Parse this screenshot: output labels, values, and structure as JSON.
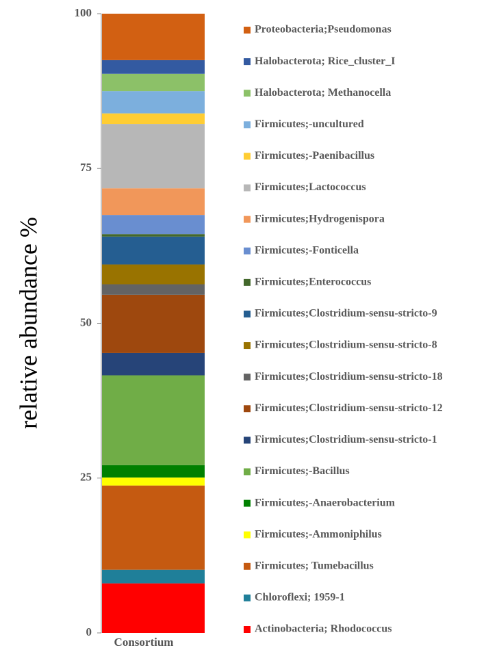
{
  "chart_data": {
    "type": "stacked_bar",
    "y_label": "relative abundance %",
    "categories": [
      "Consortium"
    ],
    "ylim": [
      0,
      100
    ],
    "yticks": [
      0,
      25,
      50,
      75,
      100
    ],
    "series": [
      {
        "name": "Actinobacteria; Rhodococcus",
        "color": "#ff0000",
        "values": [
          8.0
        ]
      },
      {
        "name": "Chloroflexi; 1959-1",
        "color": "#1f7f99",
        "values": [
          2.2
        ]
      },
      {
        "name": "Firmicutes; Tumebacillus",
        "color": "#c55a11",
        "values": [
          13.6
        ]
      },
      {
        "name": "Firmicutes;-Ammoniphilus",
        "color": "#ffff00",
        "values": [
          1.3
        ]
      },
      {
        "name": "Firmicutes;-Anaerobacterium",
        "color": "#008000",
        "values": [
          2.0
        ]
      },
      {
        "name": "Firmicutes;-Bacillus",
        "color": "#70ad47",
        "values": [
          14.5
        ]
      },
      {
        "name": "Firmicutes;Clostridium-sensu-stricto-1",
        "color": "#264478",
        "values": [
          3.6
        ]
      },
      {
        "name": "Firmicutes;Clostridium-sensu-stricto-12",
        "color": "#9e480e",
        "values": [
          9.4
        ]
      },
      {
        "name": "Firmicutes;Clostridium-sensu-stricto-18",
        "color": "#636363",
        "values": [
          1.7
        ]
      },
      {
        "name": "Firmicutes;Clostridium-sensu-stricto-8",
        "color": "#997300",
        "values": [
          3.2
        ]
      },
      {
        "name": "Firmicutes;Clostridium-sensu-stricto-9",
        "color": "#255e91",
        "values": [
          4.5
        ]
      },
      {
        "name": "Firmicutes;Enterococcus",
        "color": "#43682b",
        "values": [
          0.4
        ]
      },
      {
        "name": "Firmicutes;-Fonticella",
        "color": "#698ed0",
        "values": [
          3.1
        ]
      },
      {
        "name": "Firmicutes;Hydrogenispora",
        "color": "#f1975a",
        "values": [
          4.3
        ]
      },
      {
        "name": "Firmicutes;Lactococcus",
        "color": "#b7b7b7",
        "values": [
          10.4
        ]
      },
      {
        "name": "Firmicutes;-Paenibacillus",
        "color": "#ffcd33",
        "values": [
          1.7
        ]
      },
      {
        "name": "Firmicutes;-uncultured",
        "color": "#7cafdd",
        "values": [
          3.6
        ]
      },
      {
        "name": "Halobacterota; Methanocella",
        "color": "#8cc168",
        "values": [
          2.8
        ]
      },
      {
        "name": "Halobacterota; Rice_cluster_I",
        "color": "#335aa1",
        "values": [
          2.2
        ]
      },
      {
        "name": "Proteobacteria;Pseudomonas",
        "color": "#d26012",
        "values": [
          7.5
        ]
      }
    ]
  }
}
